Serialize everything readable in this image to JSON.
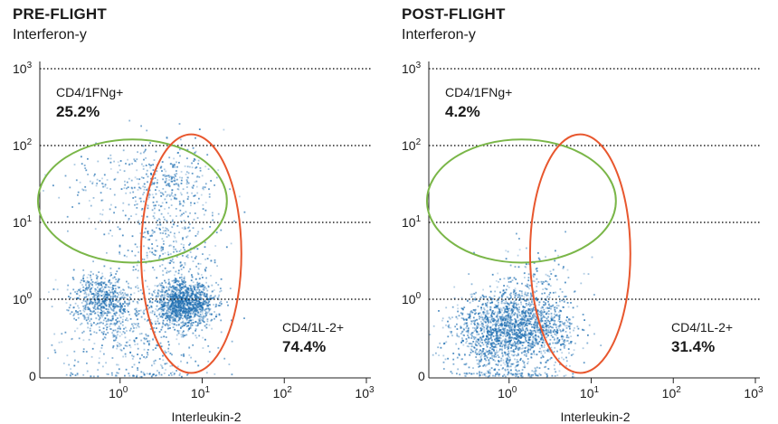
{
  "chart_data": [
    {
      "type": "scatter",
      "title": "PRE-FLIGHT",
      "subtitle": "Interferon-y",
      "xlabel": "Interleukin-2",
      "ylabel": "",
      "x_scale": "log",
      "y_scale": "log",
      "xlim": [
        0.1,
        1000
      ],
      "ylim": [
        0.1,
        1000
      ],
      "x_ticks": [
        {
          "value": 1,
          "base": "10",
          "exp": "0"
        },
        {
          "value": 10,
          "base": "10",
          "exp": "1"
        },
        {
          "value": 100,
          "base": "10",
          "exp": "2"
        },
        {
          "value": 1000,
          "base": "10",
          "exp": "3"
        }
      ],
      "y_ticks": [
        {
          "value": 0.1,
          "label": "0"
        },
        {
          "value": 1,
          "base": "10",
          "exp": "0"
        },
        {
          "value": 10,
          "base": "10",
          "exp": "1"
        },
        {
          "value": 100,
          "base": "10",
          "exp": "2"
        },
        {
          "value": 1000,
          "base": "10",
          "exp": "3"
        }
      ],
      "grid": "horizontal dotted",
      "gates": [
        {
          "name": "CD4/1FNg+",
          "percent": "25.2%",
          "shape": "ellipse",
          "color": "#7ab648",
          "x_range": [
            0.1,
            20
          ],
          "y_range": [
            3,
            120
          ]
        },
        {
          "name": "CD4/1L-2+",
          "percent": "74.4%",
          "shape": "ellipse",
          "color": "#e8572e",
          "x_range": [
            1.8,
            30
          ],
          "y_range": [
            0.11,
            140
          ]
        }
      ],
      "populations": [
        {
          "x": 0.6,
          "y": 1.0,
          "spread": 0.2,
          "count": 650
        },
        {
          "x": 6.0,
          "y": 0.9,
          "spread": 0.18,
          "count": 1300
        },
        {
          "x": 4.0,
          "y": 35,
          "spread": 0.3,
          "count": 320
        },
        {
          "x": 0.8,
          "y": 25,
          "spread": 0.3,
          "count": 120
        },
        {
          "x": 4.0,
          "y": 5,
          "spread": 0.3,
          "count": 250
        },
        {
          "x": 1.0,
          "y": 0.3,
          "spread": 0.4,
          "count": 260
        },
        {
          "x": 3.0,
          "y": 0.2,
          "spread": 0.4,
          "count": 140
        }
      ]
    },
    {
      "type": "scatter",
      "title": "POST-FLIGHT",
      "subtitle": "Interferon-y",
      "xlabel": "Interleukin-2",
      "ylabel": "",
      "x_scale": "log",
      "y_scale": "log",
      "xlim": [
        0.1,
        1000
      ],
      "ylim": [
        0.1,
        1000
      ],
      "x_ticks": [
        {
          "value": 1,
          "base": "10",
          "exp": "0"
        },
        {
          "value": 10,
          "base": "10",
          "exp": "1"
        },
        {
          "value": 100,
          "base": "10",
          "exp": "2"
        },
        {
          "value": 1000,
          "base": "10",
          "exp": "3"
        }
      ],
      "y_ticks": [
        {
          "value": 0.1,
          "label": "0"
        },
        {
          "value": 1,
          "base": "10",
          "exp": "0"
        },
        {
          "value": 10,
          "base": "10",
          "exp": "1"
        },
        {
          "value": 100,
          "base": "10",
          "exp": "2"
        },
        {
          "value": 1000,
          "base": "10",
          "exp": "3"
        }
      ],
      "grid": "horizontal dotted",
      "gates": [
        {
          "name": "CD4/1FNg+",
          "percent": "4.2%",
          "shape": "ellipse",
          "color": "#7ab648",
          "x_range": [
            0.1,
            20
          ],
          "y_range": [
            3,
            120
          ]
        },
        {
          "name": "CD4/1L-2+",
          "percent": "31.4%",
          "shape": "ellipse",
          "color": "#e8572e",
          "x_range": [
            1.8,
            30
          ],
          "y_range": [
            0.11,
            140
          ]
        }
      ],
      "populations": [
        {
          "x": 0.9,
          "y": 0.45,
          "spread": 0.28,
          "count": 1200
        },
        {
          "x": 2.5,
          "y": 0.45,
          "spread": 0.22,
          "count": 450
        },
        {
          "x": 0.5,
          "y": 0.25,
          "spread": 0.3,
          "count": 300
        },
        {
          "x": 2.0,
          "y": 2.0,
          "spread": 0.25,
          "count": 120
        },
        {
          "x": 1.5,
          "y": 0.15,
          "spread": 0.3,
          "count": 160
        }
      ]
    }
  ],
  "style": {
    "dot_color": "#1f6fb2",
    "grid_color": "#222222",
    "axis_color": "#222222",
    "gate_ifng_color": "#7ab648",
    "gate_il2_color": "#e8572e"
  }
}
